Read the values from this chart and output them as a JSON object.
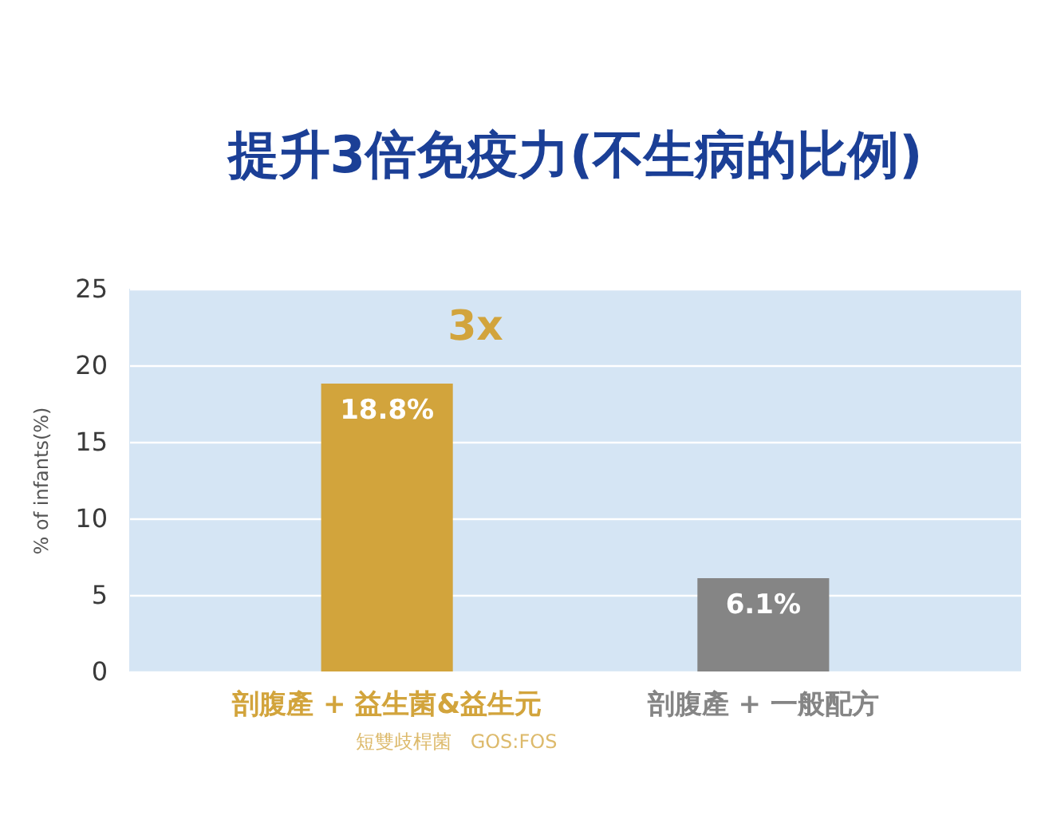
{
  "chart_data": {
    "type": "bar",
    "title": "提升3倍免疫力(不生病的比例)",
    "ylabel": "% of infants(%)",
    "categories": [
      "剖腹產 + 益生菌&益生元",
      "剖腹產 + 一般配方"
    ],
    "values": [
      18.8,
      6.1
    ],
    "colors": [
      "#d2a43c",
      "#858585"
    ],
    "value_labels": [
      "18.8%",
      "6.1%"
    ],
    "ylim": [
      0,
      25
    ],
    "yticks": [
      0,
      5,
      10,
      15,
      20,
      25
    ],
    "grid": "y",
    "legend": false,
    "annotations": [
      "3x",
      "短雙歧桿菌　GOS:FOS"
    ]
  }
}
